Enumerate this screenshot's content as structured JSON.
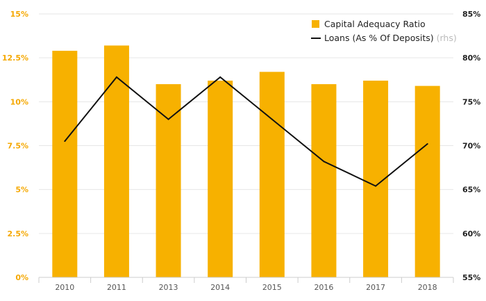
{
  "chart_data": {
    "type": "bar",
    "categories": [
      "2010",
      "2011",
      "2013",
      "2014",
      "2015",
      "2016",
      "2017",
      "2018"
    ],
    "series": [
      {
        "name": "Capital Adequacy Ratio",
        "type": "bar",
        "axis": "left",
        "values": [
          12.9,
          13.2,
          11.0,
          11.2,
          11.7,
          11.0,
          11.2,
          10.9
        ],
        "color": "#f7b100"
      },
      {
        "name": "Loans (As % Of Deposits)",
        "name_suffix": "(rhs)",
        "type": "line",
        "axis": "right",
        "values": [
          70.5,
          77.8,
          73.0,
          77.8,
          73.0,
          68.2,
          65.4,
          70.2
        ],
        "color": "#111111"
      }
    ],
    "y_left": {
      "ylim": [
        0,
        15
      ],
      "ticks": [
        0,
        2.5,
        5,
        7.5,
        10,
        12.5,
        15
      ],
      "tick_labels": [
        "0%",
        "2.5%",
        "5%",
        "7.5%",
        "10%",
        "12.5%",
        "15%"
      ]
    },
    "y_right": {
      "ylim": [
        55,
        85
      ],
      "ticks": [
        55,
        60,
        65,
        70,
        75,
        80,
        85
      ],
      "tick_labels": [
        "55%",
        "60%",
        "65%",
        "70%",
        "75%",
        "80%",
        "85%"
      ]
    },
    "grid": true,
    "legend_position": "top-right"
  }
}
